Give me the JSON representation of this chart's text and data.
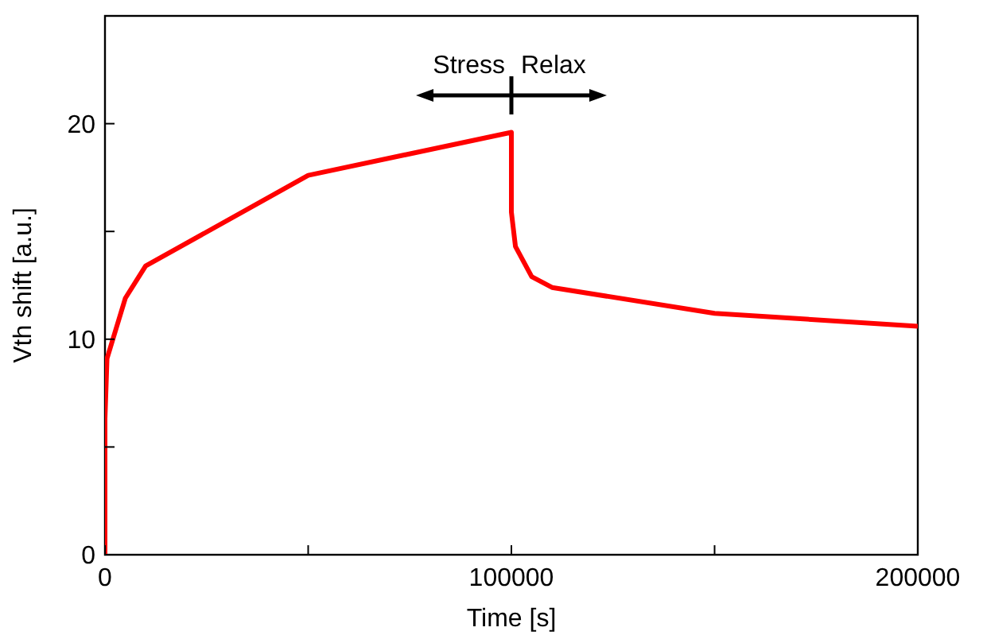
{
  "chart_data": {
    "type": "line",
    "xlabel": "Time [s]",
    "ylabel": "Vth shift [a.u.]",
    "x": [
      0,
      0,
      500,
      5000,
      10000,
      50000,
      100000,
      100000,
      101000,
      105000,
      110000,
      150000,
      200000
    ],
    "series": [
      {
        "color": "#ff0000",
        "values": [
          0,
          6.3,
          9.1,
          11.9,
          13.4,
          17.6,
          19.6,
          15.9,
          14.3,
          12.9,
          12.4,
          11.2,
          10.6
        ]
      }
    ],
    "xlim": [
      0,
      200000
    ],
    "xticks": [
      0,
      {
        "value": 50000,
        "label": null
      },
      100000,
      {
        "value": 150000,
        "label": null
      },
      200000
    ],
    "ylim": [
      0,
      25
    ],
    "yticks": [
      0,
      {
        "value": 5,
        "label": null
      },
      10,
      {
        "value": 15,
        "label": null
      },
      20
    ],
    "grid": false,
    "legend": false,
    "annotations": [
      "Stress",
      "Relax"
    ]
  }
}
